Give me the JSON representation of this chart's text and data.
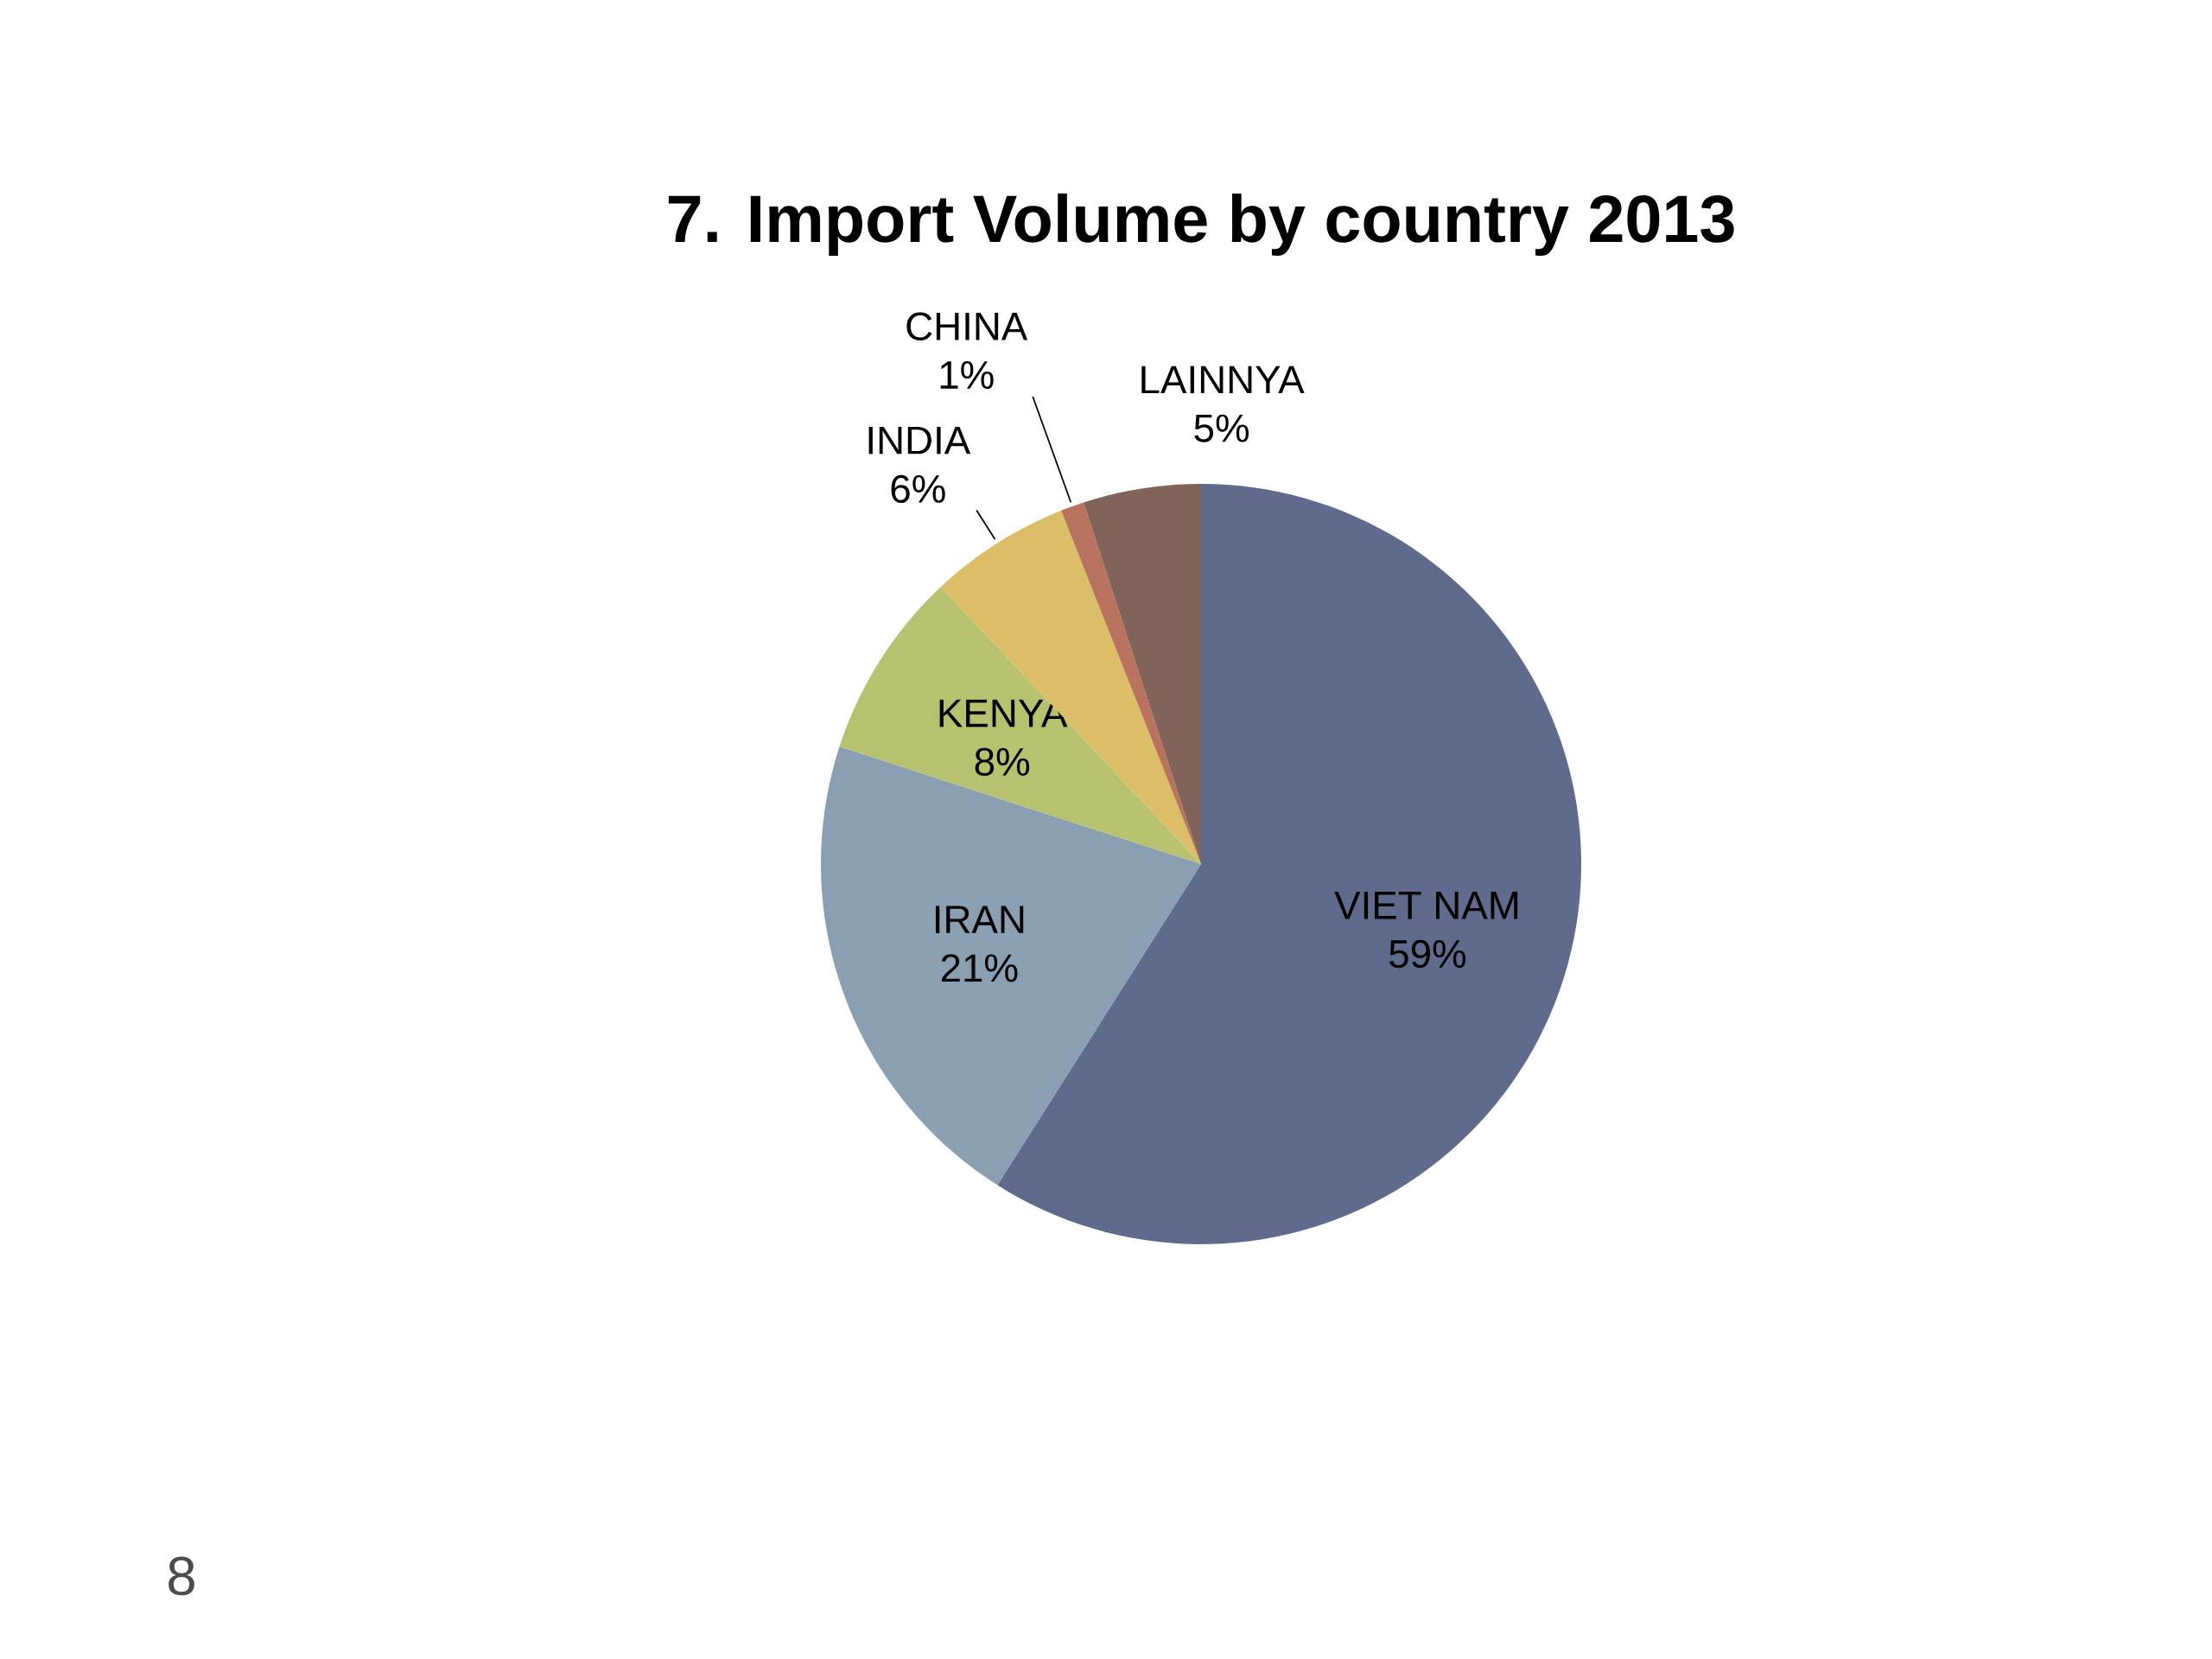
{
  "chart_data": {
    "type": "pie",
    "title": "7. Import Volume by country 2013",
    "categories": [
      "VIET NAM",
      "IRAN",
      "KENYA",
      "INDIA",
      "CHINA",
      "LAINNYA"
    ],
    "values": [
      59,
      21,
      8,
      6,
      1,
      5
    ],
    "value_labels": [
      "59%",
      "21%",
      "8%",
      "6%",
      "1%",
      "5%"
    ],
    "colors": [
      "#5f6a8c",
      "#8aa0b2",
      "#b8c26e",
      "#dcbd68",
      "#b9725e",
      "#806459"
    ],
    "annotations": [
      "8"
    ]
  }
}
